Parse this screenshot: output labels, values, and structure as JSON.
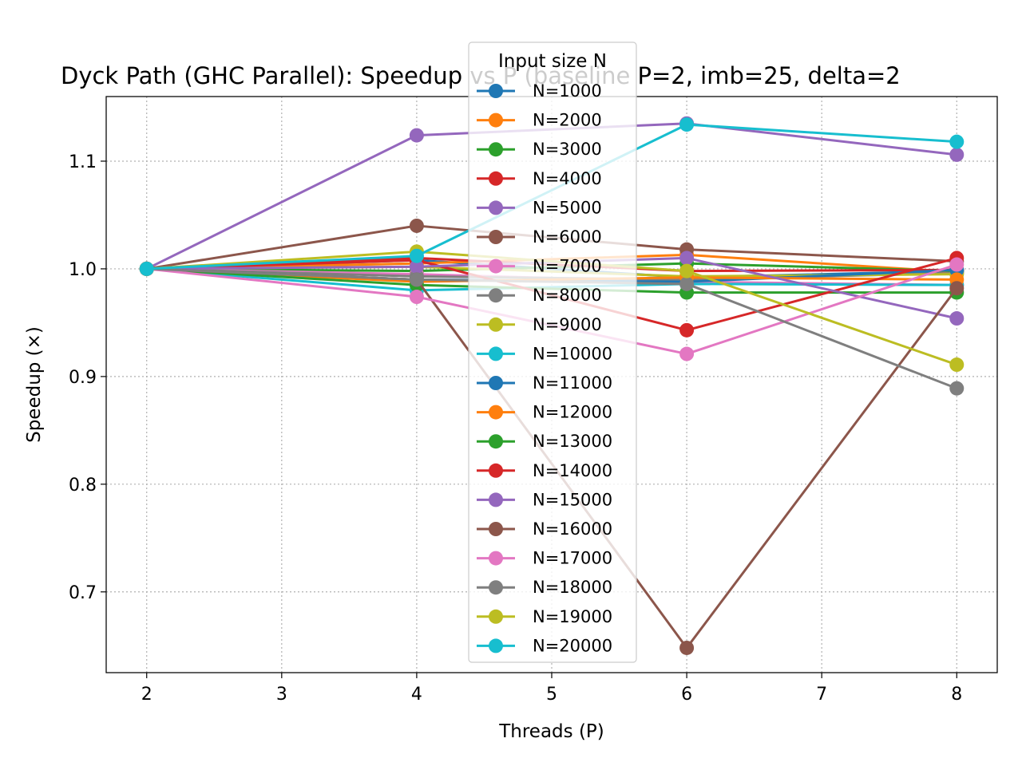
{
  "chart_data": {
    "type": "line",
    "title": "Dyck Path (GHC Parallel): Speedup vs P (baseline P=2, imb=25, delta=2",
    "xlabel": "Threads (P)",
    "ylabel": "Speedup (×)",
    "x": [
      2,
      4,
      6,
      8
    ],
    "xlim": [
      1.7,
      8.3
    ],
    "ylim": [
      0.625,
      1.16
    ],
    "xticks": [
      2,
      3,
      4,
      5,
      6,
      7,
      8
    ],
    "yticks": [
      0.7,
      0.8,
      0.9,
      1.0,
      1.1
    ],
    "xtick_labels": [
      "2",
      "3",
      "4",
      "5",
      "6",
      "7",
      "8"
    ],
    "ytick_labels": [
      "0.7",
      "0.8",
      "0.9",
      "1.0",
      "1.1"
    ],
    "grid": true,
    "legend_title": "Input size N",
    "legend_position": "top-center",
    "series": [
      {
        "name": "N=1000",
        "color": "#1f77b4",
        "values": [
          1.0,
          1.008,
          0.992,
          0.998
        ]
      },
      {
        "name": "N=2000",
        "color": "#ff7f0e",
        "values": [
          1.0,
          1.005,
          1.013,
          0.997
        ]
      },
      {
        "name": "N=3000",
        "color": "#2ca02c",
        "values": [
          1.0,
          0.998,
          1.005,
          0.998
        ]
      },
      {
        "name": "N=4000",
        "color": "#d62728",
        "values": [
          1.0,
          1.01,
          0.998,
          0.999
        ]
      },
      {
        "name": "N=5000",
        "color": "#9467bd",
        "values": [
          1.0,
          1.124,
          1.135,
          1.106
        ]
      },
      {
        "name": "N=6000",
        "color": "#8c564b",
        "values": [
          1.0,
          1.04,
          1.018,
          1.007
        ]
      },
      {
        "name": "N=7000",
        "color": "#e377c2",
        "values": [
          1.0,
          0.995,
          0.988,
          0.985
        ]
      },
      {
        "name": "N=8000",
        "color": "#7f7f7f",
        "values": [
          1.0,
          0.993,
          0.99,
          0.996
        ]
      },
      {
        "name": "N=9000",
        "color": "#bcbd22",
        "values": [
          1.0,
          1.002,
          0.993,
          0.995
        ]
      },
      {
        "name": "N=10000",
        "color": "#17becf",
        "values": [
          1.0,
          0.98,
          0.986,
          0.985
        ]
      },
      {
        "name": "N=11000",
        "color": "#1f77b4",
        "values": [
          1.0,
          0.99,
          0.988,
          0.999
        ]
      },
      {
        "name": "N=12000",
        "color": "#ff7f0e",
        "values": [
          1.0,
          0.988,
          0.992,
          0.99
        ]
      },
      {
        "name": "N=13000",
        "color": "#2ca02c",
        "values": [
          1.0,
          0.985,
          0.978,
          0.978
        ]
      },
      {
        "name": "N=14000",
        "color": "#d62728",
        "values": [
          1.0,
          1.008,
          0.943,
          1.01
        ]
      },
      {
        "name": "N=15000",
        "color": "#9467bd",
        "values": [
          1.0,
          1.002,
          1.01,
          0.954
        ]
      },
      {
        "name": "N=16000",
        "color": "#8c564b",
        "values": [
          1.0,
          0.99,
          0.648,
          0.982
        ]
      },
      {
        "name": "N=17000",
        "color": "#e377c2",
        "values": [
          1.0,
          0.974,
          0.921,
          1.004
        ]
      },
      {
        "name": "N=18000",
        "color": "#7f7f7f",
        "values": [
          1.0,
          0.99,
          0.986,
          0.889
        ]
      },
      {
        "name": "N=19000",
        "color": "#bcbd22",
        "values": [
          1.0,
          1.016,
          0.998,
          0.911
        ]
      },
      {
        "name": "N=20000",
        "color": "#17becf",
        "values": [
          1.0,
          1.012,
          1.134,
          1.118
        ]
      }
    ]
  }
}
